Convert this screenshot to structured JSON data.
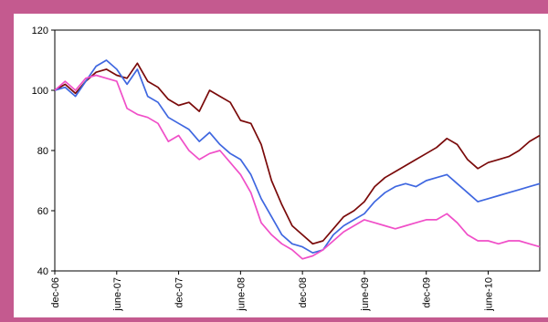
{
  "chart_data": {
    "type": "line",
    "title": "",
    "xlabel": "",
    "ylabel": "",
    "ylim": [
      40,
      120
    ],
    "yticks": [
      40,
      60,
      80,
      100,
      120
    ],
    "xlim": [
      "2006-12",
      "2010-11"
    ],
    "xticks": [
      "dec-06",
      "june-07",
      "dec-07",
      "june-08",
      "dec-08",
      "june-09",
      "dec-09",
      "june-10"
    ],
    "grid": false,
    "legend": "none",
    "x": [
      "2006-12",
      "2007-01",
      "2007-02",
      "2007-03",
      "2007-04",
      "2007-05",
      "2007-06",
      "2007-07",
      "2007-08",
      "2007-09",
      "2007-10",
      "2007-11",
      "2007-12",
      "2008-01",
      "2008-02",
      "2008-03",
      "2008-04",
      "2008-05",
      "2008-06",
      "2008-07",
      "2008-08",
      "2008-09",
      "2008-10",
      "2008-11",
      "2008-12",
      "2009-01",
      "2009-02",
      "2009-03",
      "2009-04",
      "2009-05",
      "2009-06",
      "2009-07",
      "2009-08",
      "2009-09",
      "2009-10",
      "2009-11",
      "2009-12",
      "2010-01",
      "2010-02",
      "2010-03",
      "2010-04",
      "2010-05",
      "2010-06",
      "2010-07",
      "2010-08",
      "2010-09",
      "2010-10",
      "2010-11"
    ],
    "series": [
      {
        "color": "#7a0a0a",
        "values": [
          100,
          102,
          99,
          103,
          106,
          107,
          105,
          104,
          109,
          103,
          101,
          97,
          95,
          96,
          93,
          100,
          98,
          96,
          90,
          89,
          82,
          70,
          62,
          55,
          52,
          49,
          50,
          54,
          58,
          60,
          63,
          68,
          71,
          73,
          75,
          77,
          79,
          81,
          84,
          82,
          77,
          74,
          76,
          77,
          78,
          80,
          83,
          85
        ]
      },
      {
        "color": "#3f67e0",
        "values": [
          100,
          101,
          98,
          103,
          108,
          110,
          107,
          102,
          107,
          98,
          96,
          91,
          89,
          87,
          83,
          86,
          82,
          79,
          77,
          72,
          64,
          58,
          52,
          49,
          48,
          46,
          47,
          52,
          55,
          57,
          59,
          63,
          66,
          68,
          69,
          68,
          70,
          71,
          72,
          69,
          66,
          63,
          64,
          65,
          66,
          67,
          68,
          69
        ]
      },
      {
        "color": "#f04fc8",
        "values": [
          100,
          103,
          100,
          104,
          105,
          104,
          103,
          94,
          92,
          91,
          89,
          83,
          85,
          80,
          77,
          79,
          80,
          76,
          72,
          66,
          56,
          52,
          49,
          47,
          44,
          45,
          47,
          50,
          53,
          55,
          57,
          56,
          55,
          54,
          55,
          56,
          57,
          57,
          59,
          56,
          52,
          50,
          50,
          49,
          50,
          50,
          49,
          48
        ]
      }
    ]
  }
}
